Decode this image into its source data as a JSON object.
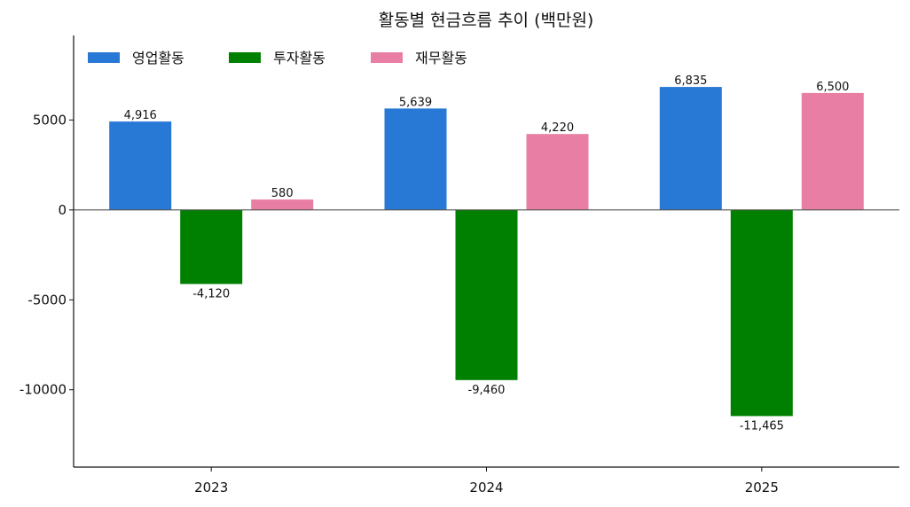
{
  "chart_data": {
    "type": "bar",
    "title": "활동별 현금흐름 추이 (백만원)",
    "xlabel": "",
    "ylabel": "",
    "categories": [
      "2023",
      "2024",
      "2025"
    ],
    "series": [
      {
        "name": "영업활동",
        "color": "#2878d6",
        "values": [
          4916,
          5639,
          6835
        ],
        "labels": [
          "4,916",
          "5,639",
          "6,835"
        ]
      },
      {
        "name": "투자활동",
        "color": "#008000",
        "values": [
          -4120,
          -9460,
          -11465
        ],
        "labels": [
          "-4,120",
          "-9,460",
          "-11,465"
        ]
      },
      {
        "name": "재무활동",
        "color": "#e87ea4",
        "values": [
          580,
          4220,
          6500
        ],
        "labels": [
          "580",
          "4,220",
          "6,500"
        ]
      }
    ],
    "yticks": [
      5000,
      0,
      -5000,
      -10000
    ],
    "ytick_labels": [
      "5000",
      "0",
      "-5000",
      "-10000"
    ],
    "ylim": [
      -14300,
      9700
    ],
    "grid": false,
    "legend_position": "top-left"
  }
}
